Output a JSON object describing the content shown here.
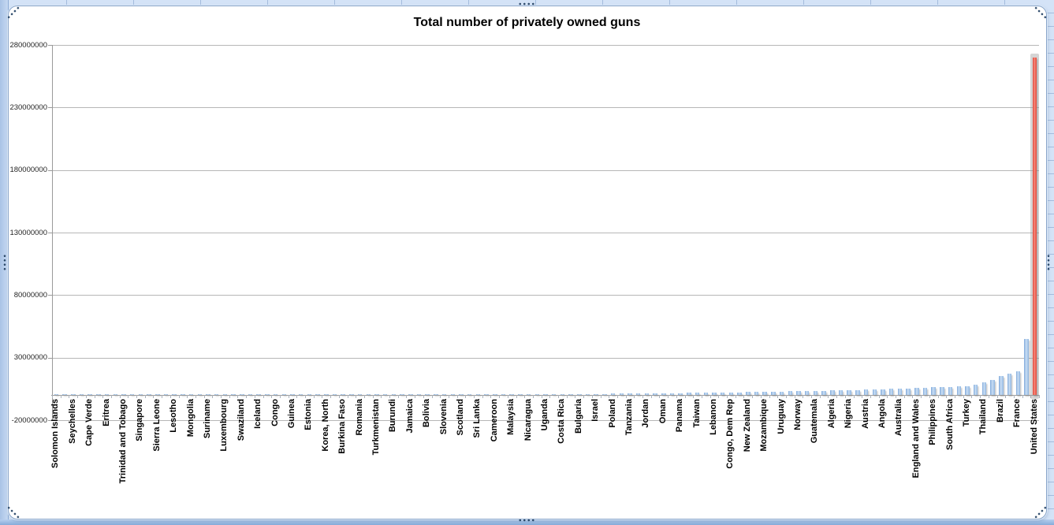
{
  "chart_data": {
    "type": "bar",
    "title": "Total number of privately owned guns",
    "xlabel": "",
    "ylabel": "",
    "ylim": [
      -20000000,
      280000000
    ],
    "y_ticks": [
      280000000,
      230000000,
      180000000,
      130000000,
      80000000,
      30000000,
      -20000000
    ],
    "y_tick_labels": [
      "280000000",
      "230000000",
      "180000000",
      "130000000",
      "80000000",
      "30000000",
      "-20000000"
    ],
    "grid": true,
    "legend_position": "none",
    "x_label_every": 2,
    "sorted": "ascending",
    "highlight": {
      "index": 116,
      "category": "United States",
      "value": 270000000,
      "color": "#e8493c"
    },
    "bar_color": "#9cc2e8",
    "categories": [
      "Solomon Islands",
      "",
      "Seychelles",
      "",
      "Cape Verde",
      "",
      "Eritrea",
      "",
      "Trinidad and Tobago",
      "",
      "Singapore",
      "",
      "Sierra Leone",
      "",
      "Lesotho",
      "",
      "Mongolia",
      "",
      "Suriname",
      "",
      "Luxembourg",
      "",
      "Swaziland",
      "",
      "Iceland",
      "",
      "Congo",
      "",
      "Guinea",
      "",
      "Estonia",
      "",
      "Korea, North",
      "",
      "Burkina Faso",
      "",
      "Romania",
      "",
      "Turkmenistan",
      "",
      "Burundi",
      "",
      "Jamaica",
      "",
      "Bolivia",
      "",
      "Slovenia",
      "",
      "Scotland",
      "",
      "Sri Lanka",
      "",
      "Cameroon",
      "",
      "Malaysia",
      "",
      "Nicaragua",
      "",
      "Uganda",
      "",
      "Costa Rica",
      "",
      "Bulgaria",
      "",
      "Israel",
      "",
      "Poland",
      "",
      "Tanzania",
      "",
      "Jordan",
      "",
      "Oman",
      "",
      "Panama",
      "",
      "Taiwan",
      "",
      "Lebanon",
      "",
      "Congo, Dem Rep",
      "",
      "New Zealand",
      "",
      "Mozambique",
      "",
      "Uruguay",
      "",
      "Norway",
      "",
      "Guatemala",
      "",
      "Algeria",
      "",
      "Nigeria",
      "",
      "Austria",
      "",
      "Angola",
      "",
      "Australia",
      "",
      "England and Wales",
      "",
      "Philippines",
      "",
      "South Africa",
      "",
      "Turkey",
      "",
      "Thailand",
      "",
      "Brazil",
      "",
      "France",
      "",
      "United States"
    ],
    "values": [
      1400,
      2500,
      4000,
      8000,
      12000,
      14000,
      16000,
      19000,
      21000,
      23000,
      25000,
      28000,
      32000,
      40000,
      50000,
      55000,
      60000,
      68000,
      75000,
      81000,
      87000,
      93000,
      100000,
      107000,
      113000,
      120000,
      128000,
      136000,
      145000,
      154000,
      163000,
      173000,
      184000,
      195000,
      207000,
      220000,
      233000,
      247000,
      262000,
      278000,
      295000,
      312000,
      330000,
      350000,
      370000,
      392000,
      415000,
      440000,
      465000,
      492000,
      520000,
      549000,
      580000,
      614000,
      650000,
      686000,
      725000,
      766000,
      810000,
      854000,
      900000,
      949000,
      1000000,
      1049000,
      1100000,
      1154000,
      1210000,
      1269000,
      1330000,
      1394000,
      1460000,
      1529000,
      1600000,
      1673000,
      1750000,
      1829000,
      1910000,
      1994000,
      2080000,
      2173000,
      2270000,
      2368000,
      2470000,
      2578000,
      2690000,
      2808000,
      2930000,
      3058000,
      3190000,
      3328000,
      3470000,
      3622000,
      3780000,
      3943000,
      4110000,
      4293000,
      4480000,
      4672000,
      4870000,
      5081000,
      5300000,
      5531000,
      5770000,
      6020000,
      6280000,
      6552000,
      6830000,
      7130000,
      7440000,
      8600000,
      10000000,
      12500000,
      15300000,
      17000000,
      19000000,
      45000000,
      270000000
    ]
  },
  "colors": {
    "bar_blue": "#9cc2e8",
    "bar_red": "#e8493c",
    "gridline": "#b7b7b7",
    "axis": "#9a9a9a",
    "worksheet_blue": "#d4e3f7",
    "chart_border": "#89a5c9",
    "handle_dots": "#2d4a6b"
  }
}
